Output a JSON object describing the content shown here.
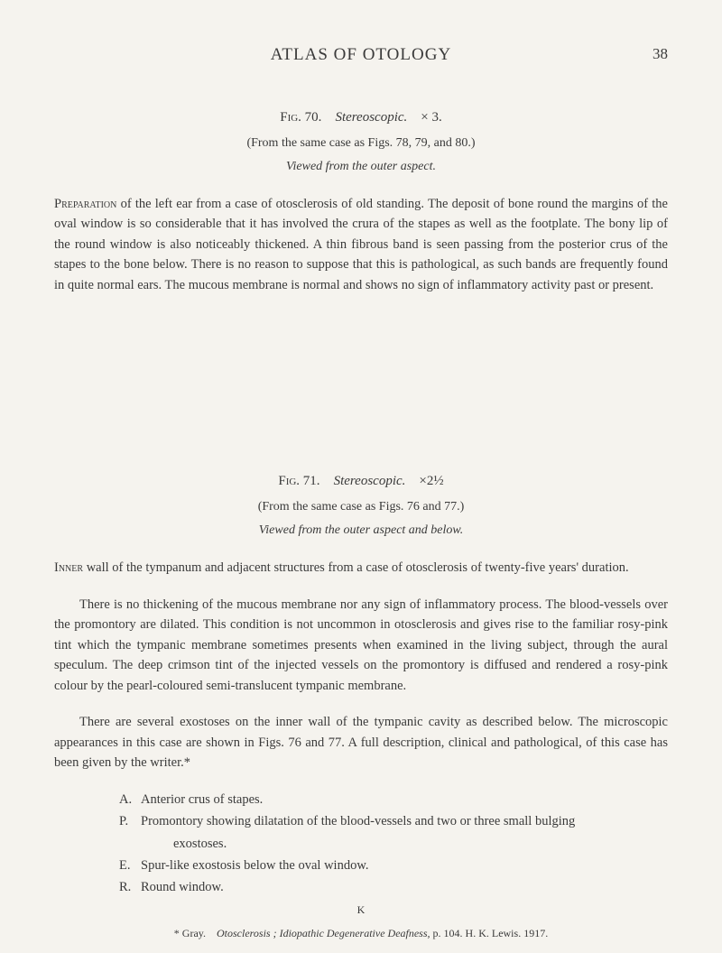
{
  "header": {
    "title": "ATLAS OF OTOLOGY",
    "page_number": "38"
  },
  "fig70": {
    "label": "Fig. 70.",
    "title": "Stereoscopic.",
    "magnification": "× 3.",
    "from": "(From the same case as Figs. 78, 79, and 80.)",
    "view": "Viewed from the outer aspect.",
    "paragraph": "Preparation of the left ear from a case of otosclerosis of old standing. The deposit of bone round the margins of the oval window is so considerable that it has involved the crura of the stapes as well as the footplate. The bony lip of the round window is also noticeably thickened. A thin fibrous band is seen passing from the posterior crus of the stapes to the bone below. There is no reason to suppose that this is pathological, as such bands are frequently found in quite normal ears. The mucous membrane is normal and shows no sign of inflammatory activity past or present.",
    "paragraph_lead": "Preparation"
  },
  "fig71": {
    "label": "Fig. 71.",
    "title": "Stereoscopic.",
    "magnification": "×2½",
    "from": "(From the same case as Figs. 76 and 77.)",
    "view": "Viewed from the outer aspect and below.",
    "para1_lead": "Inner",
    "para1": " wall of the tympanum and adjacent structures from a case of otosclerosis of twenty-five years' duration.",
    "para2": "There is no thickening of the mucous membrane nor any sign of inflammatory process. The blood-vessels over the promontory are dilated. This condition is not uncommon in otosclerosis and gives rise to the familiar rosy-pink tint which the tympanic membrane sometimes presents when examined in the living subject, through the aural speculum. The deep crimson tint of the injected vessels on the promontory is diffused and rendered a rosy-pink colour by the pearl-coloured semi-translucent tympanic membrane.",
    "para3": "There are several exostoses on the inner wall of the tympanic cavity as described below. The micro­scopic appearances in this case are shown in Figs. 76 and 77. A full description, clinical and pathological, of this case has been given by the writer.*"
  },
  "list": {
    "items": [
      {
        "letter": "A.",
        "text": "Anterior crus of stapes."
      },
      {
        "letter": "P.",
        "text": "Promontory showing dilatation of the blood-vessels and two or three small bulging"
      },
      {
        "letter": "",
        "text": "exostoses.",
        "indent": true
      },
      {
        "letter": "E.",
        "text": "Spur-like exostosis below the oval window."
      },
      {
        "letter": "R.",
        "text": "Round window."
      }
    ]
  },
  "footnote": {
    "marker": "* Gray.",
    "italic_part": "Otosclerosis ; Idiopathic Degenerative Deafness,",
    "rest": " p. 104.   H. K. Lewis.   1917."
  },
  "bottom_mark": "K"
}
